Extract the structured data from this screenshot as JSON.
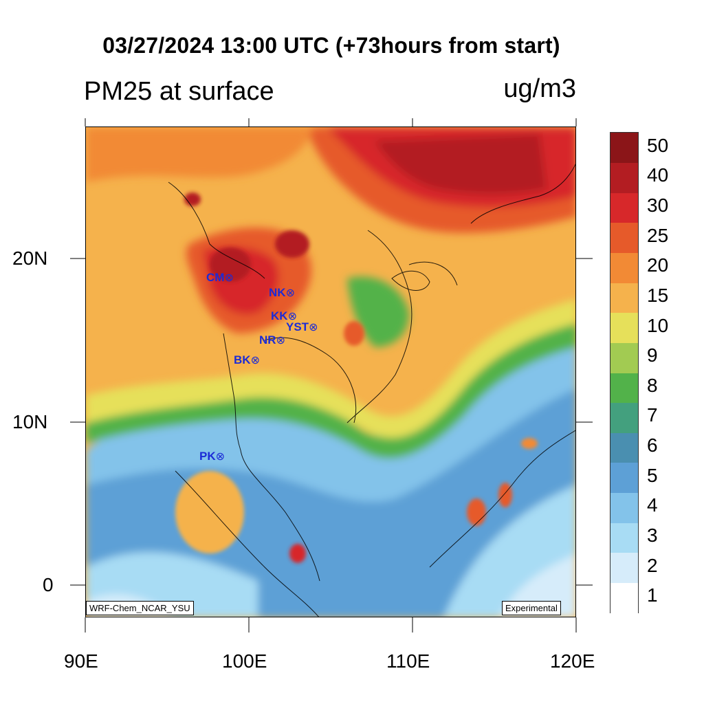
{
  "title": "03/27/2024 13:00 UTC (+73hours from start)",
  "variable_label": "PM25 at surface",
  "units_label": "ug/m3",
  "map": {
    "projection": "lat-lon",
    "lon_range": [
      90,
      120
    ],
    "lat_range": [
      -2,
      28
    ],
    "x_tick_labels": [
      "90E",
      "100E",
      "110E",
      "120E"
    ],
    "y_tick_labels": [
      "20N",
      "10N",
      "0"
    ],
    "fill_description": "PM2.5 concentration shaded field",
    "credit_label": "WRF-Chem_NCAR_YSU",
    "status_label": "Experimental"
  },
  "sites": [
    {
      "code": "CM",
      "marker": "⊗"
    },
    {
      "code": "NK",
      "marker": "⊗"
    },
    {
      "code": "KK",
      "marker": "⊗"
    },
    {
      "code": "YST",
      "marker": "⊗"
    },
    {
      "code": "NR",
      "marker": "⊗"
    },
    {
      "code": "BK",
      "marker": "⊗"
    },
    {
      "code": "PK",
      "marker": "⊗"
    }
  ],
  "colorbar": {
    "levels": [
      "1",
      "2",
      "3",
      "4",
      "5",
      "6",
      "7",
      "8",
      "9",
      "10",
      "15",
      "20",
      "25",
      "30",
      "40",
      "50"
    ],
    "colors": [
      "#ffffff",
      "#d6ecfa",
      "#a8dcf4",
      "#83c3ea",
      "#5da0d6",
      "#4a8fb0",
      "#43a07e",
      "#52b24a",
      "#a2cb52",
      "#e6e05a",
      "#f5b24c",
      "#f28a35",
      "#e65a2a",
      "#d7282a",
      "#b31d22",
      "#8b1518"
    ]
  }
}
